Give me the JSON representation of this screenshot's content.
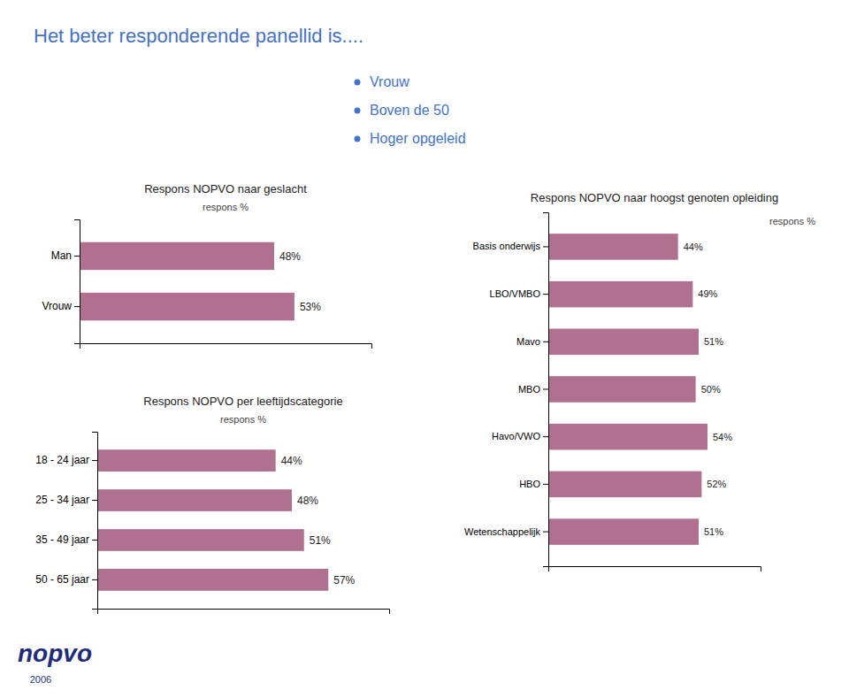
{
  "title": "Het beter responderende panellid is....",
  "color": "#4472C4",
  "annotations": [
    {
      "text": "Vrouw",
      "color": "#4472C4"
    },
    {
      "text": "Boven de 50",
      "color": "#4472C4"
    },
    {
      "text": "Hoger opgeleid",
      "color": "#4472C4"
    },
    {
      "text": "nopvo",
      "color": "#1F2D7B"
    },
    {
      "text": "2006",
      "color": "#1F2D7B"
    }
  ],
  "chart_data": [
    {
      "type": "bar",
      "orientation": "horizontal",
      "title": "Respons NOPVO naar geslacht",
      "xlabel": "respons %",
      "categories": [
        "Man",
        "Vrouw"
      ],
      "values": [
        48,
        53
      ],
      "value_labels": [
        "48%",
        "53%"
      ],
      "data_labels": true,
      "color": "#B07090",
      "xlim": [
        0,
        72
      ],
      "xticks": [],
      "tick_labels": "y"
    },
    {
      "type": "bar",
      "orientation": "horizontal",
      "title": "Respons NOPVO naar hoogst genoten opleiding",
      "xlabel": "respons %",
      "categories": [
        "Basis onderwijs",
        "LBO/VMBO",
        "Mavo",
        "MBO",
        "Havo/VWO",
        "HBO",
        "Wetenschappelijk"
      ],
      "values": [
        44,
        49,
        51,
        50,
        54,
        52,
        51
      ],
      "value_labels": [
        "44%",
        "49%",
        "51%",
        "50%",
        "54%",
        "52%",
        "51%"
      ],
      "data_labels": true,
      "color": "#B07090",
      "xlim": [
        0,
        72
      ],
      "xticks": [],
      "tick_labels": "y"
    },
    {
      "type": "bar",
      "orientation": "horizontal",
      "title": "Respons NOPVO per leeftijdscategorie",
      "xlabel": "respons %",
      "categories": [
        "18 - 24 jaar",
        "25 - 34 jaar",
        "35 - 49 jaar",
        "50 - 65 jaar"
      ],
      "values": [
        44,
        48,
        51,
        57
      ],
      "value_labels": [
        "44%",
        "48%",
        "51%",
        "57%"
      ],
      "data_labels": true,
      "color": "#B07090",
      "xlim": [
        0,
        72
      ],
      "xticks": [],
      "tick_labels": "y"
    }
  ]
}
